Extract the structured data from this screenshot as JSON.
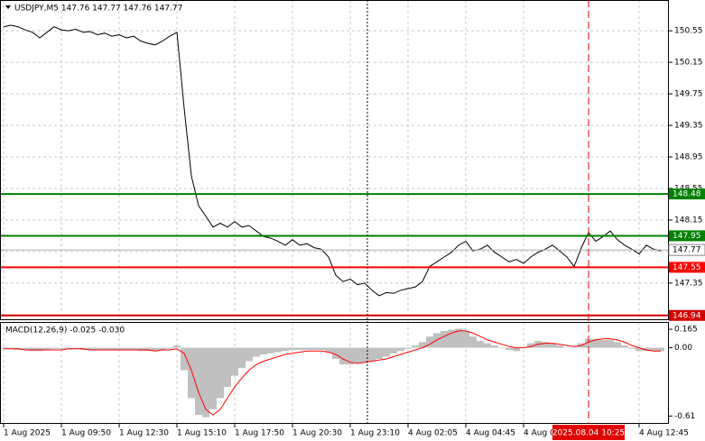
{
  "chart_data": [
    {
      "type": "line",
      "title": "USDJPY,M5  147.76 147.77 147.76 147.77",
      "categories": [
        "1 Aug 2025",
        null,
        null,
        null,
        null,
        null,
        null,
        null,
        "1 Aug 09:50",
        null,
        null,
        null,
        null,
        null,
        null,
        null,
        "1 Aug 12:30",
        null,
        null,
        null,
        null,
        null,
        null,
        null,
        "1 Aug 15:10",
        null,
        null,
        null,
        null,
        null,
        null,
        null,
        "1 Aug 17:50",
        null,
        null,
        null,
        null,
        null,
        null,
        null,
        "1 Aug 20:30",
        null,
        null,
        null,
        null,
        null,
        null,
        null,
        "1 Aug 23:10",
        null,
        null,
        null,
        null,
        null,
        null,
        null,
        "4 Aug 02:05",
        null,
        null,
        null,
        null,
        null,
        null,
        null,
        "4 Aug 04:45",
        null,
        null,
        null,
        null,
        null,
        null,
        null,
        "4 Aug 0",
        null,
        null,
        null,
        null,
        null,
        null,
        null,
        null,
        null,
        null,
        null,
        null,
        null,
        null,
        null,
        "4 Aug 12:45",
        null,
        null,
        null
      ],
      "values": [
        150.6,
        150.62,
        150.6,
        150.56,
        150.53,
        150.46,
        150.53,
        150.6,
        150.56,
        150.55,
        150.57,
        150.53,
        150.54,
        150.5,
        150.52,
        150.48,
        150.5,
        150.46,
        150.48,
        150.42,
        150.39,
        150.37,
        150.42,
        150.48,
        150.53,
        149.57,
        148.71,
        148.33,
        148.2,
        148.06,
        148.11,
        148.06,
        148.13,
        148.06,
        148.08,
        148.01,
        147.94,
        147.92,
        147.88,
        147.83,
        147.9,
        147.83,
        147.85,
        147.8,
        147.78,
        147.68,
        147.45,
        147.37,
        147.4,
        147.33,
        147.35,
        147.26,
        147.19,
        147.23,
        147.22,
        147.26,
        147.28,
        147.3,
        147.37,
        147.56,
        147.62,
        147.68,
        147.74,
        147.83,
        147.88,
        147.76,
        147.78,
        147.83,
        147.74,
        147.68,
        147.62,
        147.65,
        147.6,
        147.68,
        147.74,
        147.78,
        147.83,
        147.76,
        147.68,
        147.56,
        147.8,
        147.99,
        147.88,
        147.94,
        148.01,
        147.9,
        147.83,
        147.78,
        147.72,
        147.83,
        147.78,
        147.76
      ],
      "color": "#000000",
      "ylim": [
        146.88,
        150.94
      ],
      "yticks": [
        150.55,
        150.15,
        149.75,
        149.35,
        148.95,
        148.55,
        148.15,
        147.75,
        147.35
      ],
      "grid": true,
      "levels": [
        {
          "value": 148.48,
          "color": "#008000"
        },
        {
          "value": 147.95,
          "color": "#008000"
        },
        {
          "value": 147.55,
          "color": "#ff0000"
        },
        {
          "value": 146.94,
          "color": "#d00000"
        }
      ],
      "last_price": 147.77,
      "cursor_time": "2025.08.04 10:25"
    },
    {
      "type": "macd",
      "title": "MACD(12,26,9) -0.025 -0.030",
      "series": [
        {
          "type": "bar",
          "color": "#c0c0c0",
          "values": [
            -0.01,
            -0.01,
            -0.02,
            -0.02,
            -0.03,
            -0.03,
            -0.02,
            -0.01,
            -0.01,
            -0.01,
            -0.01,
            -0.02,
            -0.02,
            -0.02,
            -0.02,
            -0.02,
            -0.02,
            -0.02,
            -0.02,
            -0.03,
            -0.03,
            -0.03,
            -0.02,
            -0.01,
            0.02,
            -0.2,
            -0.45,
            -0.6,
            -0.62,
            -0.55,
            -0.45,
            -0.35,
            -0.25,
            -0.18,
            -0.12,
            -0.08,
            -0.06,
            -0.05,
            -0.04,
            -0.03,
            -0.02,
            -0.02,
            -0.02,
            -0.02,
            -0.02,
            -0.04,
            -0.1,
            -0.15,
            -0.15,
            -0.14,
            -0.13,
            -0.12,
            -0.1,
            -0.08,
            -0.05,
            -0.03,
            -0.01,
            0.02,
            0.05,
            0.1,
            0.13,
            0.15,
            0.16,
            0.17,
            0.15,
            0.1,
            0.06,
            0.04,
            0.02,
            0,
            -0.02,
            -0.03,
            0,
            0.04,
            0.06,
            0.05,
            0.04,
            0.02,
            0,
            0,
            0.04,
            0.08,
            0.08,
            0.07,
            0.07,
            0.05,
            0.02,
            -0.01,
            -0.03,
            -0.03,
            -0.03,
            -0.03
          ]
        },
        {
          "type": "line",
          "color": "#ff0000",
          "values": [
            -0.01,
            -0.01,
            -0.01,
            -0.02,
            -0.02,
            -0.02,
            -0.02,
            -0.02,
            -0.02,
            -0.01,
            -0.01,
            -0.01,
            -0.02,
            -0.02,
            -0.02,
            -0.02,
            -0.02,
            -0.02,
            -0.02,
            -0.02,
            -0.02,
            -0.03,
            -0.02,
            -0.02,
            -0.01,
            -0.05,
            -0.2,
            -0.4,
            -0.55,
            -0.6,
            -0.55,
            -0.45,
            -0.35,
            -0.27,
            -0.2,
            -0.15,
            -0.12,
            -0.1,
            -0.08,
            -0.06,
            -0.05,
            -0.04,
            -0.03,
            -0.03,
            -0.03,
            -0.04,
            -0.06,
            -0.1,
            -0.13,
            -0.14,
            -0.13,
            -0.12,
            -0.11,
            -0.1,
            -0.08,
            -0.06,
            -0.04,
            -0.02,
            0,
            0.03,
            0.07,
            0.1,
            0.13,
            0.15,
            0.15,
            0.13,
            0.1,
            0.07,
            0.05,
            0.03,
            0.01,
            0,
            0,
            0.01,
            0.03,
            0.04,
            0.04,
            0.03,
            0.02,
            0.01,
            0.02,
            0.05,
            0.07,
            0.08,
            0.08,
            0.07,
            0.05,
            0.02,
            0,
            -0.02,
            -0.03,
            -0.03
          ]
        }
      ],
      "ylim": [
        -0.68,
        0.23
      ],
      "yticks": [
        0.165,
        {
          "value": 0,
          "label": "0.00"
        },
        -0.61
      ]
    }
  ]
}
